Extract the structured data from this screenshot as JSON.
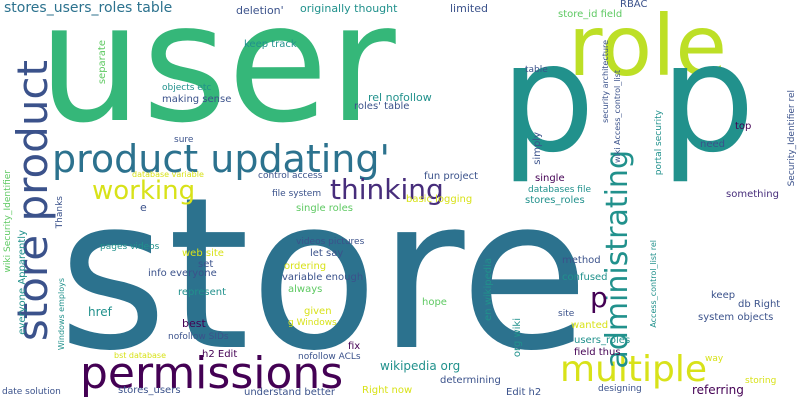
{
  "words": [
    {
      "text": "user",
      "color": "#35b779"
    },
    {
      "text": "store",
      "color": "#2c728e"
    },
    {
      "text": "role",
      "color": "#bddf26"
    },
    {
      "text": "p",
      "color": "#21918c"
    },
    {
      "text": "p",
      "color": "#21918c"
    },
    {
      "text": "product updating'",
      "color": "#2c728e"
    },
    {
      "text": "store product",
      "color": "#3b528b"
    },
    {
      "text": "permissions",
      "color": "#440154"
    },
    {
      "text": "multiple",
      "color": "#d8e219"
    },
    {
      "text": "administrating",
      "color": "#21918c"
    },
    {
      "text": "working",
      "color": "#d8e219"
    },
    {
      "text": "thinking",
      "color": "#472d7b"
    },
    {
      "text": "p",
      "color": "#440154"
    },
    {
      "text": "stores_users_roles table",
      "color": "#2c728e"
    },
    {
      "text": "deletion'",
      "color": "#3b528b"
    },
    {
      "text": "originally thought",
      "color": "#21918c"
    },
    {
      "text": "limited",
      "color": "#3b528b"
    },
    {
      "text": "RBAC",
      "color": "#3b528b"
    },
    {
      "text": "store_id field",
      "color": "#5ec962"
    },
    {
      "text": "separate",
      "color": "#5ec962"
    },
    {
      "text": "keep track",
      "color": "#21918c"
    },
    {
      "text": "objects etc",
      "color": "#21918c"
    },
    {
      "text": "making sense",
      "color": "#3b528b"
    },
    {
      "text": "rel nofollow",
      "color": "#21918c"
    },
    {
      "text": "roles' table",
      "color": "#3b528b"
    },
    {
      "text": "table",
      "color": "#3b528b"
    },
    {
      "text": "security architecture",
      "color": "#3b528b"
    },
    {
      "text": "wiki Access_control_list",
      "color": "#3b528b"
    },
    {
      "text": "Security_Identifier rel",
      "color": "#3b528b"
    },
    {
      "text": "top",
      "color": "#440154"
    },
    {
      "text": "need",
      "color": "#3b528b"
    },
    {
      "text": "portal security",
      "color": "#21918c"
    },
    {
      "text": "sure",
      "color": "#3b528b"
    },
    {
      "text": "database variable",
      "color": "#d8e219"
    },
    {
      "text": "control access",
      "color": "#3b528b"
    },
    {
      "text": "fun project",
      "color": "#3b528b"
    },
    {
      "text": "simply",
      "color": "#3b528b"
    },
    {
      "text": "basic logging",
      "color": "#d8e219"
    },
    {
      "text": "single",
      "color": "#440154"
    },
    {
      "text": "databases file",
      "color": "#21918c"
    },
    {
      "text": "stores_roles",
      "color": "#21918c"
    },
    {
      "text": "something",
      "color": "#472d7b"
    },
    {
      "text": "e",
      "color": "#3b528b"
    },
    {
      "text": "file system",
      "color": "#3b528b"
    },
    {
      "text": "single roles",
      "color": "#5ec962"
    },
    {
      "text": "wiki Security_Identifier",
      "color": "#5ec962"
    },
    {
      "text": "Thanks",
      "color": "#3b528b"
    },
    {
      "text": "everyone Apparently",
      "color": "#21918c"
    },
    {
      "text": "pages videos",
      "color": "#21918c"
    },
    {
      "text": "videos pictures",
      "color": "#3b528b"
    },
    {
      "text": "web site",
      "color": "#d8e219"
    },
    {
      "text": "let say",
      "color": "#3b528b"
    },
    {
      "text": "set",
      "color": "#3b528b"
    },
    {
      "text": "info everyone",
      "color": "#3b528b"
    },
    {
      "text": "ordering",
      "color": "#d8e219"
    },
    {
      "text": "variable enough",
      "color": "#3b528b"
    },
    {
      "text": "always",
      "color": "#5ec962"
    },
    {
      "text": "method",
      "color": "#3b528b"
    },
    {
      "text": "confused",
      "color": "#21918c"
    },
    {
      "text": "en wikipedia",
      "color": "#21918c"
    },
    {
      "text": "org wiki",
      "color": "#21918c"
    },
    {
      "text": "Windows employs",
      "color": "#21918c"
    },
    {
      "text": "href",
      "color": "#21918c"
    },
    {
      "text": "represent",
      "color": "#21918c"
    },
    {
      "text": "best",
      "color": "#440154"
    },
    {
      "text": "given",
      "color": "#d8e219"
    },
    {
      "text": "g Windows",
      "color": "#d8e219"
    },
    {
      "text": "hope",
      "color": "#5ec962"
    },
    {
      "text": "nofollow SIDs",
      "color": "#3b528b"
    },
    {
      "text": "bst database",
      "color": "#d8e219"
    },
    {
      "text": "h2 Edit",
      "color": "#440154"
    },
    {
      "text": "fix",
      "color": "#440154"
    },
    {
      "text": "nofollow ACLs",
      "color": "#3b528b"
    },
    {
      "text": "wikipedia org",
      "color": "#21918c"
    },
    {
      "text": "users_roles",
      "color": "#21918c"
    },
    {
      "text": "wanted",
      "color": "#d8e219"
    },
    {
      "text": "field thus",
      "color": "#440154"
    },
    {
      "text": "keep",
      "color": "#3b528b"
    },
    {
      "text": "db Right",
      "color": "#3b528b"
    },
    {
      "text": "site",
      "color": "#3b528b"
    },
    {
      "text": "system objects",
      "color": "#3b528b"
    },
    {
      "text": "Access_control_list rel",
      "color": "#21918c"
    },
    {
      "text": "way",
      "color": "#d8e219"
    },
    {
      "text": "storing",
      "color": "#d8e219"
    },
    {
      "text": "designing",
      "color": "#3b528b"
    },
    {
      "text": "referring",
      "color": "#440154"
    },
    {
      "text": "determining",
      "color": "#3b528b"
    },
    {
      "text": "Edit h2",
      "color": "#3b528b"
    },
    {
      "text": "Right now",
      "color": "#d8e219"
    },
    {
      "text": "understand better",
      "color": "#3b528b"
    },
    {
      "text": "stores_users",
      "color": "#3b528b"
    },
    {
      "text": "date solution",
      "color": "#3b528b"
    }
  ]
}
